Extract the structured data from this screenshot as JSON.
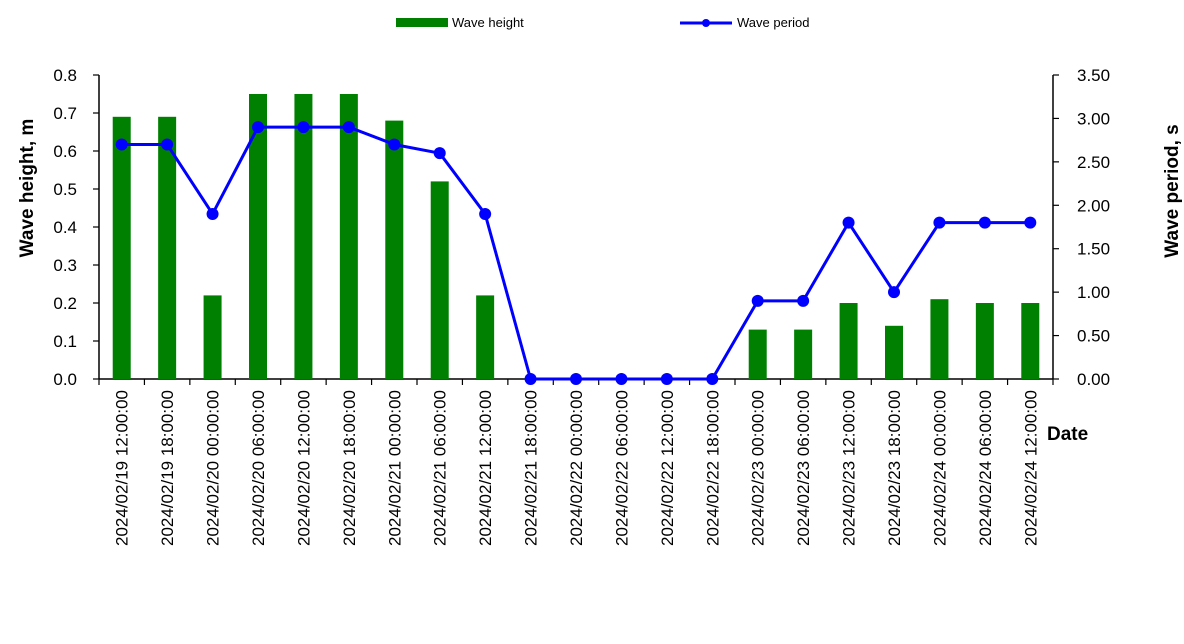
{
  "chart_data": {
    "type": "bar",
    "categories": [
      "2024/02/19 12:00:00",
      "2024/02/19 18:00:00",
      "2024/02/20 00:00:00",
      "2024/02/20 06:00:00",
      "2024/02/20 12:00:00",
      "2024/02/20 18:00:00",
      "2024/02/21 00:00:00",
      "2024/02/21 06:00:00",
      "2024/02/21 12:00:00",
      "2024/02/21 18:00:00",
      "2024/02/22 00:00:00",
      "2024/02/22 06:00:00",
      "2024/02/22 12:00:00",
      "2024/02/22 18:00:00",
      "2024/02/23 00:00:00",
      "2024/02/23 06:00:00",
      "2024/02/23 12:00:00",
      "2024/02/23 18:00:00",
      "2024/02/24 00:00:00",
      "2024/02/24 06:00:00",
      "2024/02/24 12:00:00"
    ],
    "series": [
      {
        "name": "Wave height",
        "type": "bar",
        "axis": "left",
        "color": "#008000",
        "values": [
          0.69,
          0.69,
          0.22,
          0.75,
          0.75,
          0.75,
          0.68,
          0.52,
          0.22,
          0,
          0,
          0,
          0,
          0,
          0.13,
          0.13,
          0.2,
          0.14,
          0.21,
          0.2,
          0.2
        ]
      },
      {
        "name": "Wave period",
        "type": "line",
        "axis": "right",
        "color": "#0000ff",
        "values": [
          2.7,
          2.7,
          1.9,
          2.9,
          2.9,
          2.9,
          2.7,
          2.6,
          1.9,
          0,
          0,
          0,
          0,
          0,
          0.9,
          0.9,
          1.8,
          1.0,
          1.8,
          1.8,
          1.8
        ]
      }
    ],
    "xlabel": "Date",
    "ylabel": "Wave height, m",
    "y2label": "Wave period, s",
    "ylim": [
      0,
      0.8
    ],
    "y2lim": [
      0,
      3.5
    ],
    "yticks": [
      "0.0",
      "0.1",
      "0.2",
      "0.3",
      "0.4",
      "0.5",
      "0.6",
      "0.7",
      "0.8"
    ],
    "y2ticks": [
      "0.00",
      "0.50",
      "1.00",
      "1.50",
      "2.00",
      "2.50",
      "3.00",
      "3.50"
    ],
    "grid": false,
    "legend_position": "top"
  }
}
